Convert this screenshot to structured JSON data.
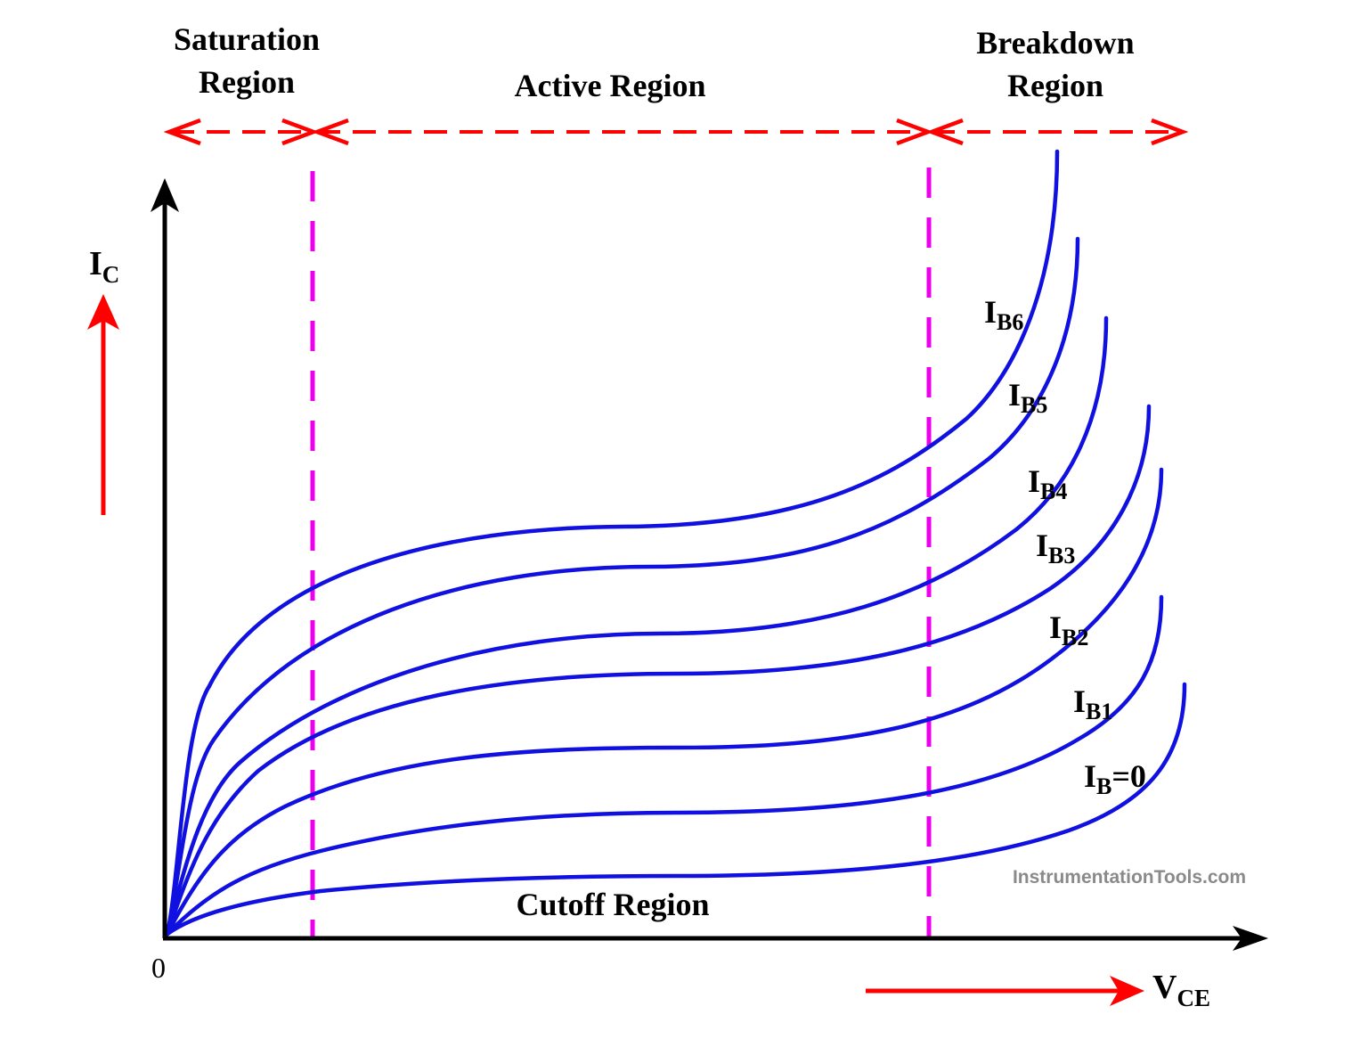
{
  "regions": {
    "saturation": [
      "Saturation",
      "Region"
    ],
    "active": "Active Region",
    "breakdown": [
      "Breakdown",
      "Region"
    ],
    "cutoff": "Cutoff Region"
  },
  "axes": {
    "y_label_main": "I",
    "y_label_sub": "C",
    "x_label_main": "V",
    "x_label_sub": "CE",
    "origin": "0"
  },
  "curves": [
    {
      "main": "I",
      "sub": "B6",
      "tail": ""
    },
    {
      "main": "I",
      "sub": "B5",
      "tail": ""
    },
    {
      "main": "I",
      "sub": "B4",
      "tail": ""
    },
    {
      "main": "I",
      "sub": "B3",
      "tail": ""
    },
    {
      "main": "I",
      "sub": "B2",
      "tail": ""
    },
    {
      "main": "I",
      "sub": "B1",
      "tail": ""
    },
    {
      "main": "I",
      "sub": "B",
      "tail": "=0"
    }
  ],
  "watermark": "InstrumentationTools.com",
  "colors": {
    "curve": "#1010e0",
    "region_arrow": "#ff0000",
    "boundary": "#ee00ee",
    "axis": "#000000",
    "watermark": "#8a8a8a"
  },
  "icons": {
    "region_arrow": "double-headed-dashed-arrow",
    "direction_arrow": "solid-arrow"
  }
}
